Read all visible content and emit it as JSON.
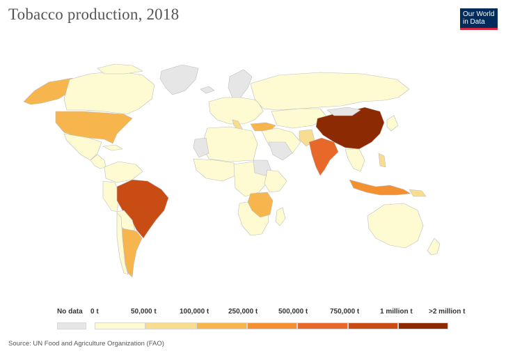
{
  "title": "Tobacco production, 2018",
  "logo": {
    "line1": "Our World",
    "line2": "in Data"
  },
  "source": "Source: UN Food and Agriculture Organization (FAO)",
  "colors": {
    "ocean": "#ffffff",
    "no_data": "#e6e6e6",
    "c0": "#fefbd2",
    "c1": "#f8dd8f",
    "c2": "#f7b54e",
    "c3": "#f39130",
    "c4": "#e8682a",
    "c5": "#c94c14",
    "c6": "#8c2a04",
    "border": "#bdbdbd"
  },
  "legend": {
    "no_data_label": "No data",
    "labels": [
      "0 t",
      "50,000 t",
      "100,000 t",
      "250,000 t",
      "500,000 t",
      "750,000 t",
      "1 million t",
      ">2 million t"
    ]
  }
}
